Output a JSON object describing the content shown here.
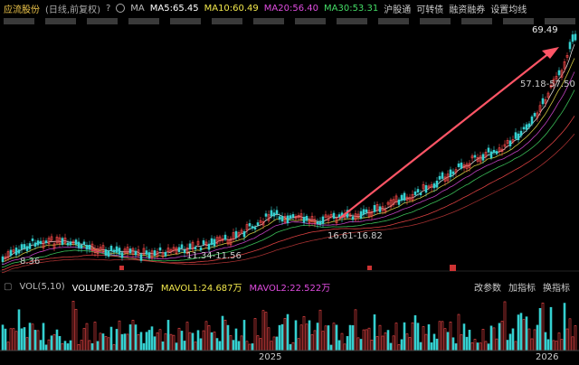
{
  "toolbar": {
    "stock_name": "应流股份",
    "period": "(日线,前复权)",
    "help": "?",
    "ma_label": "MA",
    "ma5": "MA5:65.45",
    "ma10": "MA10:60.49",
    "ma20": "MA20:56.40",
    "ma30": "MA30:53.31",
    "link1": "沪股通",
    "link2": "可转债",
    "link3": "融资融券",
    "link4": "设置均线"
  },
  "price_labels": {
    "high": "69.49",
    "range_upper": "57.18-57.50",
    "range_mid": "16.61-16.82",
    "range_low": "11.34-11.56",
    "low": "8.36"
  },
  "volume": {
    "title": "VOL(5,10)",
    "volume": "VOLUME:20.378万",
    "mavol1": "MAVOL1:24.687万",
    "mavol2": "MAVOL2:22.522万",
    "link1": "改参数",
    "link2": "加指标",
    "link3": "换指标"
  },
  "x_axis": {
    "year1": "2025",
    "year2": "2026"
  },
  "colors": {
    "up": "#ff4b4b",
    "down": "#35d0d0",
    "arrow": "#ff5566"
  }
}
